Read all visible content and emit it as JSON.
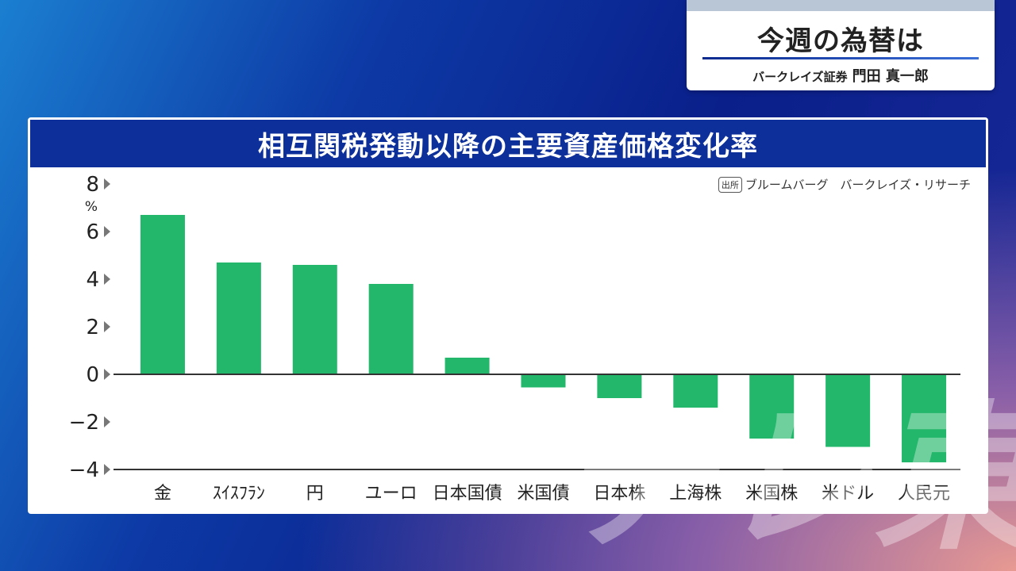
{
  "header": {
    "title": "今週の為替は",
    "subtitle_org": "バークレイズ証券",
    "subtitle_name": "門田 真一郎"
  },
  "panel": {
    "title": "相互関税発動以降の主要資産価格変化率",
    "source_tag": "出所",
    "source_text": "ブルームバーグ　バークレイズ・リサーチ"
  },
  "watermark": "テレ東",
  "colors": {
    "bar": "#22b76a",
    "header_bg": "#0d2f9a"
  },
  "chart_data": {
    "type": "bar",
    "title": "相互関税発動以降の主要資産価格変化率",
    "categories": [
      "金",
      "ｽｲｽﾌﾗﾝ",
      "円",
      "ユーロ",
      "日本国債",
      "米国債",
      "日本株",
      "上海株",
      "米国株",
      "米ドル",
      "人民元"
    ],
    "values": [
      6.7,
      4.7,
      4.6,
      3.8,
      0.7,
      -0.55,
      -1.0,
      -1.4,
      -2.7,
      -3.05,
      -3.7
    ],
    "ylabel": "%",
    "ylim": [
      -4,
      8
    ],
    "yticks": [
      8,
      6,
      4,
      2,
      0,
      -2,
      -4
    ],
    "grid": false
  }
}
